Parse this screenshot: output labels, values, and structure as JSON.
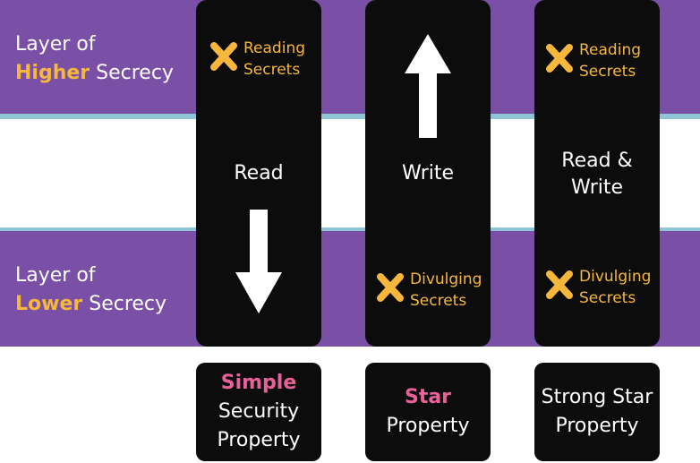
{
  "layers": {
    "higher": {
      "prefix": "Layer of",
      "highlight": "Higher",
      "suffix": "Secrecy"
    },
    "lower": {
      "prefix": "Layer of",
      "highlight": "Lower",
      "suffix": "Secrecy"
    }
  },
  "columns": [
    {
      "operation": "Read",
      "blocked_top": {
        "line1": "Reading",
        "line2": "Secrets"
      }
    },
    {
      "operation": "Write",
      "blocked_bottom": {
        "line1": "Divulging",
        "line2": "Secrets"
      }
    },
    {
      "operation_line1": "Read &",
      "operation_line2": "Write",
      "blocked_top": {
        "line1": "Reading",
        "line2": "Secrets"
      },
      "blocked_bottom": {
        "line1": "Divulging",
        "line2": "Secrets"
      }
    }
  ],
  "properties": [
    {
      "accent": "Simple",
      "line2": "Security",
      "line3": "Property"
    },
    {
      "accent": "Star",
      "line2": "Property"
    },
    {
      "line1": "Strong Star",
      "line2": "Property"
    }
  ],
  "colors": {
    "band": "#7a4fa6",
    "separator": "#8fc3d6",
    "highlight": "#f6b73c",
    "accent_pink": "#e8619a",
    "panel": "#0c0c0c"
  }
}
